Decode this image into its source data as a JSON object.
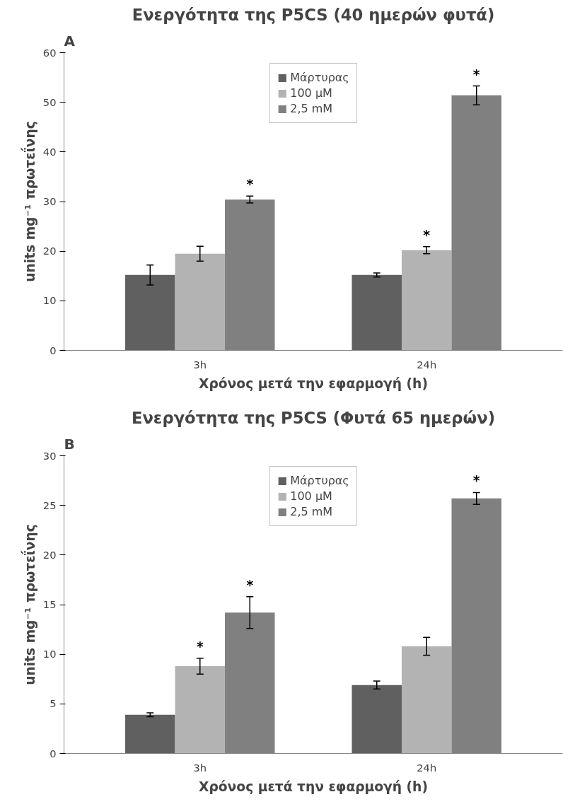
{
  "chart_data": [
    {
      "type": "bar",
      "title": "Ενεργότητα της P5CS (40 ημερών φυτά)",
      "xlabel": "Χρόνος μετά την εφαρμογή (h)",
      "ylabel": "units mg⁻¹ πρωτεΐνης",
      "categories": [
        "3h",
        "24h"
      ],
      "ylim": [
        0,
        60
      ],
      "yticks": [
        0,
        10,
        20,
        30,
        40,
        50,
        60
      ],
      "grid": false,
      "legend": "top",
      "series": [
        {
          "name": "Μάρτυρας",
          "color": "#606060",
          "values": [
            15.2,
            15.2
          ],
          "errors": [
            2.0,
            0.4
          ]
        },
        {
          "name": "100 μM",
          "color": "#b3b3b3",
          "values": [
            19.5,
            20.2
          ],
          "errors": [
            1.5,
            0.7
          ],
          "value_labels": [
            null,
            "*"
          ]
        },
        {
          "name": "2,5 mM",
          "color": "#808080",
          "values": [
            30.4,
            51.4
          ],
          "errors": [
            0.7,
            1.9
          ],
          "value_labels": [
            "*",
            "*"
          ]
        }
      ],
      "annotations": [
        "A"
      ]
    },
    {
      "type": "bar",
      "title": "Ενεργότητα της P5CS (Φυτά 65 ημερών)",
      "xlabel": "Χρόνος μετά την εφαρμογή (h)",
      "ylabel": "units mg⁻¹ πρωτεΐνης",
      "categories": [
        "3h",
        "24h"
      ],
      "ylim": [
        0,
        30
      ],
      "yticks": [
        0,
        5,
        10,
        15,
        20,
        25,
        30
      ],
      "grid": false,
      "legend": "top",
      "series": [
        {
          "name": "Μάρτυρας",
          "color": "#606060",
          "values": [
            3.9,
            6.9
          ],
          "errors": [
            0.2,
            0.4
          ]
        },
        {
          "name": "100 μM",
          "color": "#b3b3b3",
          "values": [
            8.8,
            10.8
          ],
          "errors": [
            0.8,
            0.9
          ],
          "value_labels": [
            "*",
            null
          ]
        },
        {
          "name": "2,5 mM",
          "color": "#808080",
          "values": [
            14.2,
            25.7
          ],
          "errors": [
            1.6,
            0.6
          ],
          "value_labels": [
            "*",
            "*"
          ]
        }
      ],
      "annotations": [
        "B"
      ]
    }
  ]
}
